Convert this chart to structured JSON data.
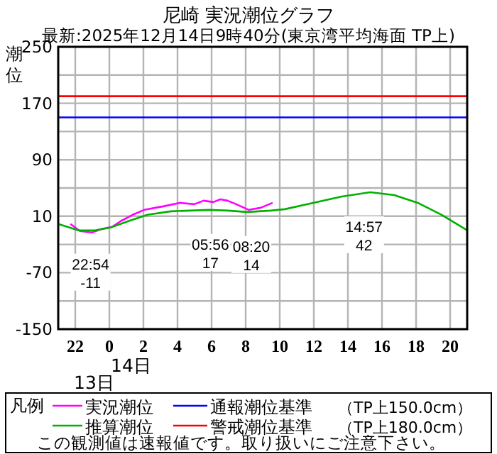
{
  "chart_data": {
    "type": "line",
    "title": "尼崎 実況潮位グラフ",
    "subtitle": "最新:2025年12月14日9時40分(東京湾平均海面 TP上)",
    "ylabel": "潮位",
    "legend_title": "凡例",
    "xlim": [
      "2025-12-13T21:00",
      "2025-12-14T21:00"
    ],
    "xticks": [
      {
        "value": "2025-12-13T22:00",
        "label": "22"
      },
      {
        "value": "2025-12-14T00:00",
        "label": "0"
      },
      {
        "value": "2025-12-14T02:00",
        "label": "2"
      },
      {
        "value": "2025-12-14T04:00",
        "label": "4"
      },
      {
        "value": "2025-12-14T06:00",
        "label": "6"
      },
      {
        "value": "2025-12-14T08:00",
        "label": "8"
      },
      {
        "value": "2025-12-14T10:00",
        "label": "10"
      },
      {
        "value": "2025-12-14T12:00",
        "label": "12"
      },
      {
        "value": "2025-12-14T14:00",
        "label": "14"
      },
      {
        "value": "2025-12-14T16:00",
        "label": "16"
      },
      {
        "value": "2025-12-14T18:00",
        "label": "18"
      },
      {
        "value": "2025-12-14T20:00",
        "label": "20"
      }
    ],
    "ylim": [
      -150,
      250
    ],
    "yticks": [
      -150,
      {
        "value": -110,
        "label": null
      },
      -70,
      {
        "value": -30,
        "label": null
      },
      10,
      {
        "value": 50,
        "label": null
      },
      90,
      {
        "value": 130,
        "label": null
      },
      170,
      {
        "value": 210,
        "label": null
      },
      250
    ],
    "grid": true,
    "legend": "bottom",
    "marker": "none",
    "series": [
      {
        "name": "実況潮位",
        "color": "#ff00ff",
        "x": [
          "2025-12-13T21:43",
          "2025-12-13T22:17",
          "2025-12-13T22:59",
          "2025-12-13T23:33",
          "2025-12-14T00:10",
          "2025-12-14T00:40",
          "2025-12-14T01:22",
          "2025-12-14T02:03",
          "2025-12-14T03:10",
          "2025-12-14T04:08",
          "2025-12-14T04:59",
          "2025-12-14T05:32",
          "2025-12-14T06:06",
          "2025-12-14T06:31",
          "2025-12-14T06:56",
          "2025-12-14T07:21",
          "2025-12-14T08:11",
          "2025-12-14T08:53",
          "2025-12-14T09:35"
        ],
        "values": [
          -1,
          -11,
          -13,
          -8,
          -5,
          3,
          12,
          19,
          24,
          29,
          27,
          32,
          30,
          34,
          32,
          28,
          19,
          22,
          29
        ]
      },
      {
        "name": "推算潮位",
        "color": "#00b000",
        "x": [
          "2025-12-13T21:00",
          "2025-12-13T22:12",
          "2025-12-13T23:10",
          "2025-12-14T00:04",
          "2025-12-14T01:07",
          "2025-12-14T02:14",
          "2025-12-14T03:37",
          "2025-12-14T05:51",
          "2025-12-14T06:58",
          "2025-12-14T08:05",
          "2025-12-14T09:28",
          "2025-12-14T10:18",
          "2025-12-14T11:58",
          "2025-12-14T13:39",
          "2025-12-14T15:19",
          "2025-12-14T16:43",
          "2025-12-14T18:06",
          "2025-12-14T19:30",
          "2025-12-14T21:00"
        ],
        "values": [
          -1,
          -10,
          -10,
          -6,
          3,
          12,
          17,
          19,
          18,
          16,
          18,
          20,
          29,
          38,
          44,
          40,
          29,
          12,
          -10
        ]
      }
    ],
    "ref_lines": [
      {
        "axis": "y",
        "value": 150,
        "label": "通報潮位基準 （TP上150.0cm）",
        "color": "#0000ff"
      },
      {
        "axis": "y",
        "value": 180,
        "label": "警戒潮位基準 （TP上180.0cm）",
        "color": "#ff0000"
      }
    ],
    "annotations": [
      {
        "text": "22:54 -11",
        "x": "2025-12-13T22:54",
        "y": -11
      },
      {
        "text": "05:56 17",
        "x": "2025-12-14T05:56",
        "y": 17
      },
      {
        "text": "08:20 14",
        "x": "2025-12-14T08:20",
        "y": 14
      },
      {
        "text": "14:57 42",
        "x": "2025-12-14T14:57",
        "y": 42
      },
      "14日",
      "13日",
      "この観測値は速報値です。取り扱いにご注意下さい。"
    ]
  }
}
